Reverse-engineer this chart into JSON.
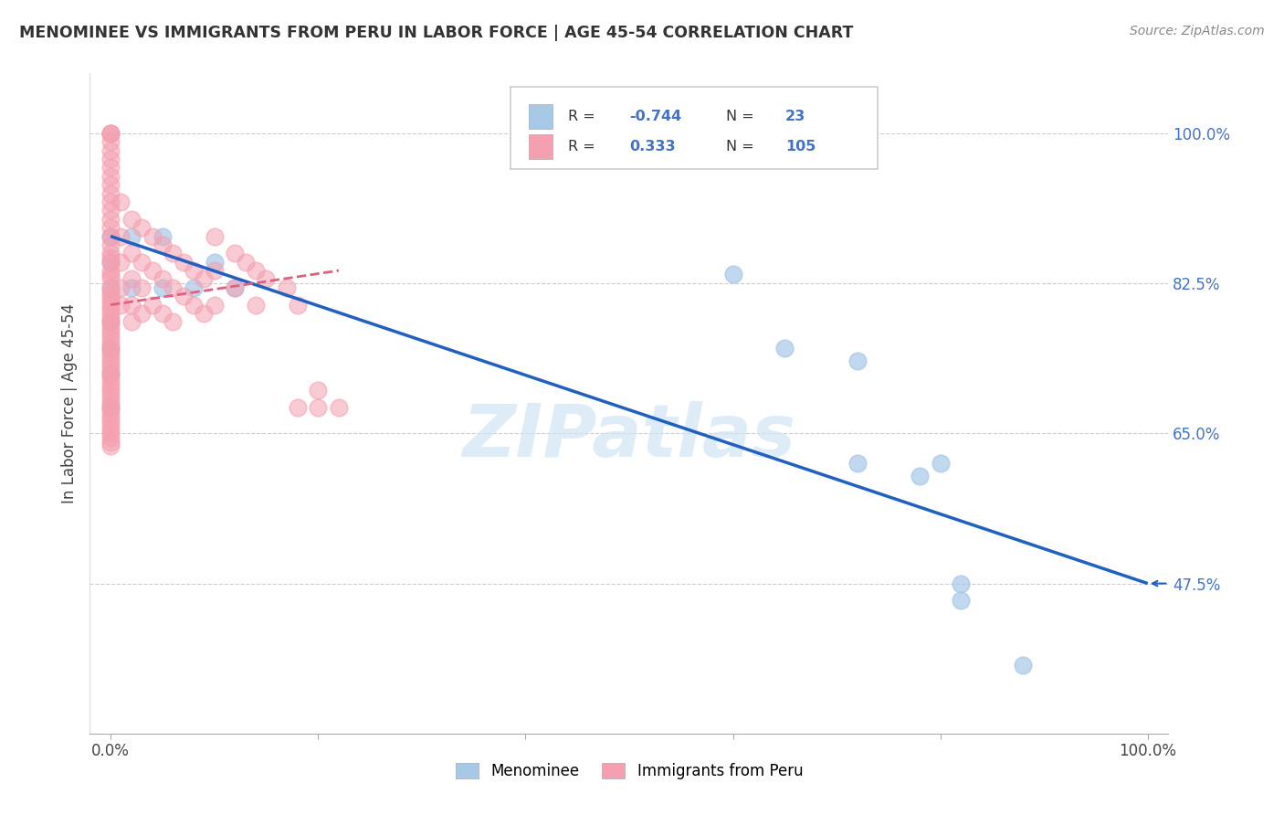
{
  "title": "MENOMINEE VS IMMIGRANTS FROM PERU IN LABOR FORCE | AGE 45-54 CORRELATION CHART",
  "source": "Source: ZipAtlas.com",
  "ylabel": "In Labor Force | Age 45-54",
  "xlim": [
    -0.02,
    1.02
  ],
  "ylim": [
    0.3,
    1.07
  ],
  "ytick_labels_right": [
    "100.0%",
    "82.5%",
    "65.0%",
    "47.5%"
  ],
  "ytick_values_right": [
    1.0,
    0.825,
    0.65,
    0.475
  ],
  "legend_label_blue": "Menominee",
  "legend_label_pink": "Immigrants from Peru",
  "R_blue": -0.744,
  "N_blue": 23,
  "R_pink": 0.333,
  "N_pink": 105,
  "blue_color": "#a8c8e8",
  "pink_color": "#f4a0b0",
  "blue_line_color": "#2060c0",
  "pink_line_color": "#e06080",
  "scatter_blue": [
    [
      0.0,
      0.88
    ],
    [
      0.0,
      0.85
    ],
    [
      0.0,
      0.82
    ],
    [
      0.0,
      0.78
    ],
    [
      0.0,
      0.75
    ],
    [
      0.0,
      0.72
    ],
    [
      0.0,
      0.68
    ],
    [
      0.02,
      0.88
    ],
    [
      0.02,
      0.82
    ],
    [
      0.05,
      0.88
    ],
    [
      0.05,
      0.82
    ],
    [
      0.08,
      0.82
    ],
    [
      0.1,
      0.85
    ],
    [
      0.12,
      0.82
    ],
    [
      0.6,
      0.836
    ],
    [
      0.65,
      0.75
    ],
    [
      0.72,
      0.735
    ],
    [
      0.72,
      0.615
    ],
    [
      0.78,
      0.6
    ],
    [
      0.8,
      0.615
    ],
    [
      0.82,
      0.475
    ],
    [
      0.82,
      0.455
    ],
    [
      0.88,
      0.38
    ]
  ],
  "scatter_pink": [
    [
      0.0,
      1.0
    ],
    [
      0.0,
      1.0
    ],
    [
      0.0,
      1.0
    ],
    [
      0.0,
      0.99
    ],
    [
      0.0,
      0.98
    ],
    [
      0.0,
      0.97
    ],
    [
      0.0,
      0.96
    ],
    [
      0.0,
      0.95
    ],
    [
      0.0,
      0.94
    ],
    [
      0.0,
      0.93
    ],
    [
      0.0,
      0.92
    ],
    [
      0.0,
      0.91
    ],
    [
      0.0,
      0.9
    ],
    [
      0.0,
      0.89
    ],
    [
      0.0,
      0.88
    ],
    [
      0.0,
      0.87
    ],
    [
      0.0,
      0.86
    ],
    [
      0.0,
      0.855
    ],
    [
      0.0,
      0.85
    ],
    [
      0.0,
      0.84
    ],
    [
      0.0,
      0.835
    ],
    [
      0.0,
      0.83
    ],
    [
      0.0,
      0.82
    ],
    [
      0.0,
      0.815
    ],
    [
      0.0,
      0.81
    ],
    [
      0.0,
      0.805
    ],
    [
      0.0,
      0.8
    ],
    [
      0.0,
      0.795
    ],
    [
      0.0,
      0.79
    ],
    [
      0.0,
      0.785
    ],
    [
      0.0,
      0.78
    ],
    [
      0.0,
      0.775
    ],
    [
      0.0,
      0.77
    ],
    [
      0.0,
      0.765
    ],
    [
      0.0,
      0.76
    ],
    [
      0.0,
      0.755
    ],
    [
      0.0,
      0.75
    ],
    [
      0.0,
      0.745
    ],
    [
      0.0,
      0.74
    ],
    [
      0.0,
      0.735
    ],
    [
      0.0,
      0.73
    ],
    [
      0.0,
      0.725
    ],
    [
      0.0,
      0.72
    ],
    [
      0.0,
      0.715
    ],
    [
      0.0,
      0.71
    ],
    [
      0.0,
      0.705
    ],
    [
      0.0,
      0.7
    ],
    [
      0.0,
      0.695
    ],
    [
      0.0,
      0.69
    ],
    [
      0.0,
      0.685
    ],
    [
      0.0,
      0.68
    ],
    [
      0.0,
      0.675
    ],
    [
      0.0,
      0.67
    ],
    [
      0.0,
      0.665
    ],
    [
      0.0,
      0.66
    ],
    [
      0.0,
      0.655
    ],
    [
      0.0,
      0.65
    ],
    [
      0.0,
      0.645
    ],
    [
      0.0,
      0.64
    ],
    [
      0.0,
      0.635
    ],
    [
      0.01,
      0.92
    ],
    [
      0.01,
      0.88
    ],
    [
      0.01,
      0.85
    ],
    [
      0.01,
      0.82
    ],
    [
      0.01,
      0.8
    ],
    [
      0.02,
      0.9
    ],
    [
      0.02,
      0.86
    ],
    [
      0.02,
      0.83
    ],
    [
      0.02,
      0.8
    ],
    [
      0.02,
      0.78
    ],
    [
      0.03,
      0.89
    ],
    [
      0.03,
      0.85
    ],
    [
      0.03,
      0.82
    ],
    [
      0.03,
      0.79
    ],
    [
      0.04,
      0.88
    ],
    [
      0.04,
      0.84
    ],
    [
      0.04,
      0.8
    ],
    [
      0.05,
      0.87
    ],
    [
      0.05,
      0.83
    ],
    [
      0.05,
      0.79
    ],
    [
      0.06,
      0.86
    ],
    [
      0.06,
      0.82
    ],
    [
      0.06,
      0.78
    ],
    [
      0.07,
      0.85
    ],
    [
      0.07,
      0.81
    ],
    [
      0.08,
      0.84
    ],
    [
      0.08,
      0.8
    ],
    [
      0.09,
      0.83
    ],
    [
      0.09,
      0.79
    ],
    [
      0.1,
      0.88
    ],
    [
      0.1,
      0.84
    ],
    [
      0.1,
      0.8
    ],
    [
      0.12,
      0.86
    ],
    [
      0.12,
      0.82
    ],
    [
      0.13,
      0.85
    ],
    [
      0.14,
      0.84
    ],
    [
      0.14,
      0.8
    ],
    [
      0.15,
      0.83
    ],
    [
      0.17,
      0.82
    ],
    [
      0.18,
      0.8
    ],
    [
      0.18,
      0.68
    ],
    [
      0.2,
      0.7
    ],
    [
      0.2,
      0.68
    ],
    [
      0.22,
      0.68
    ]
  ],
  "blue_trend": [
    0.0,
    0.88,
    1.0,
    0.475
  ],
  "pink_trend": [
    0.0,
    0.8,
    0.22,
    0.84
  ],
  "watermark_text": "ZIPatlas",
  "background_color": "#ffffff",
  "grid_color": "#cccccc"
}
